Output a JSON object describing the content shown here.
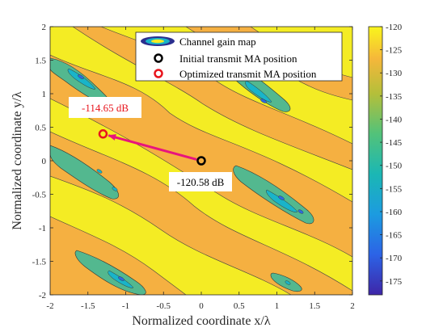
{
  "chart_data": {
    "type": "heatmap",
    "xlabel": "Normalized coordinate x/λ",
    "ylabel": "Normalized coordinate y/λ",
    "xlim": [
      -2,
      2
    ],
    "ylim": [
      -2,
      2
    ],
    "xticks": [
      "-2",
      "-1.5",
      "-1",
      "-0.5",
      "0",
      "0.5",
      "1",
      "1.5",
      "2"
    ],
    "yticks": [
      "2",
      "1.5",
      "1",
      "0.5",
      "0",
      "-0.5",
      "-1",
      "-1.5",
      "-2"
    ],
    "colorbar": {
      "range": [
        -178,
        -120
      ],
      "ticks": [
        "-120",
        "-125",
        "-130",
        "-135",
        "-140",
        "-145",
        "-150",
        "-155",
        "-160",
        "-165",
        "-170",
        "-175"
      ]
    },
    "contour_levels": [
      -128,
      -140,
      -150,
      -160
    ],
    "level_colors": [
      "#f4ec24",
      "#f5b041",
      "#53b88f",
      "#19b4c9",
      "#2d6be0"
    ],
    "legend": {
      "position": "top-right",
      "entries": [
        {
          "label": "Channel gain map",
          "marker": "contour-ellipse"
        },
        {
          "label": "Initial transmit MA position",
          "marker": "black-circle"
        },
        {
          "label": "Optimized transmit MA position",
          "marker": "red-circle"
        }
      ]
    },
    "points": [
      {
        "name": "initial",
        "x": 0.0,
        "y": 0.0,
        "color": "#000000",
        "annotation": "-120.58 dB"
      },
      {
        "name": "optimized",
        "x": -1.3,
        "y": 0.4,
        "color": "#e8141c",
        "annotation": "-114.65 dB"
      }
    ],
    "arrow": {
      "from": [
        0.0,
        0.0
      ],
      "to": [
        -1.3,
        0.4
      ],
      "color": "#e8147d"
    }
  }
}
